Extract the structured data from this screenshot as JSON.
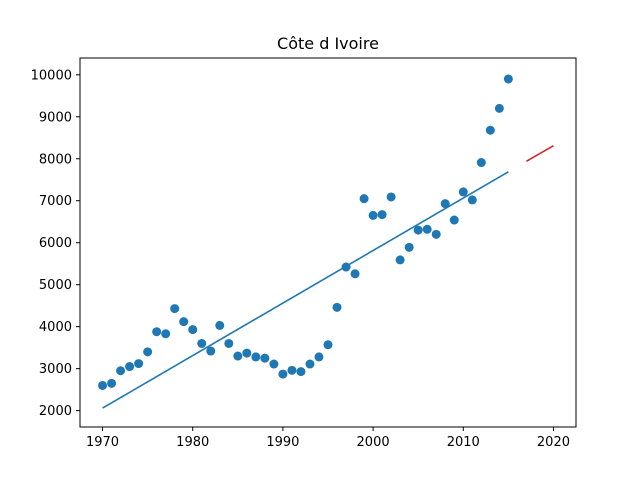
{
  "chart_data": {
    "type": "scatter",
    "title": "Côte d Ivoire",
    "xlabel": "",
    "ylabel": "",
    "xlim": [
      1967.5,
      2022.5
    ],
    "ylim": [
      1610,
      10400
    ],
    "xticks": [
      1970,
      1980,
      1990,
      2000,
      2010,
      2020
    ],
    "yticks": [
      2000,
      3000,
      4000,
      5000,
      6000,
      7000,
      8000,
      9000,
      10000
    ],
    "grid": false,
    "colors": {
      "points": "#1f77b4",
      "fit": "#1f77b4",
      "forecast": "#d62728"
    },
    "points": {
      "x": [
        1970,
        1971,
        1972,
        1973,
        1974,
        1975,
        1976,
        1977,
        1978,
        1979,
        1980,
        1981,
        1982,
        1983,
        1984,
        1985,
        1986,
        1987,
        1988,
        1989,
        1990,
        1991,
        1992,
        1993,
        1994,
        1995,
        1996,
        1997,
        1998,
        1999,
        2000,
        2001,
        2002,
        2003,
        2004,
        2005,
        2006,
        2007,
        2008,
        2009,
        2010,
        2011,
        2012,
        2013,
        2014,
        2015
      ],
      "y": [
        2600,
        2650,
        2950,
        3050,
        3120,
        3400,
        3880,
        3830,
        4430,
        4120,
        3930,
        3600,
        3420,
        4030,
        3600,
        3300,
        3370,
        3280,
        3250,
        3110,
        2870,
        2960,
        2930,
        3110,
        3280,
        3570,
        4460,
        5420,
        5260,
        7050,
        6650,
        6670,
        7090,
        5590,
        5890,
        6300,
        6320,
        6200,
        6930,
        6540,
        7210,
        7020,
        7910,
        8680,
        9200,
        9900
      ]
    },
    "fit_line": {
      "x": [
        1970,
        2015
      ],
      "y": [
        2060,
        7690
      ]
    },
    "forecast_line": {
      "x": [
        2017,
        2020
      ],
      "y": [
        7940,
        8310
      ]
    }
  }
}
